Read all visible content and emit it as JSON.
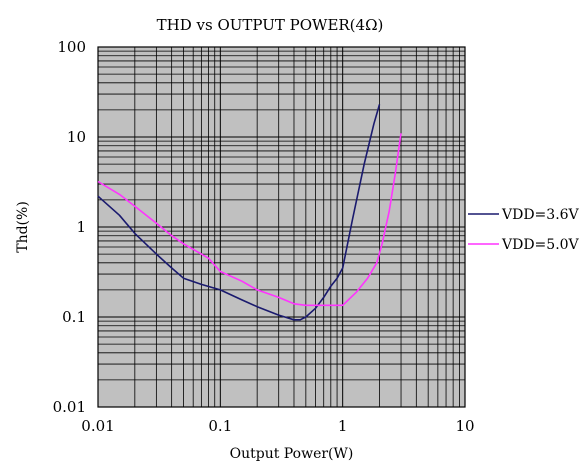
{
  "chart_data": {
    "type": "line",
    "title": "THD vs OUTPUT POWER(4Ω)",
    "xlabel": "Output Power(W)",
    "ylabel": "Thd(%)",
    "x_scale": "log",
    "y_scale": "log",
    "xlim": [
      0.01,
      10
    ],
    "ylim": [
      0.01,
      100
    ],
    "x_ticks": [
      "0.01",
      "0.1",
      "1",
      "10"
    ],
    "y_ticks": [
      "100",
      "10",
      "1",
      "0.1",
      "0.01"
    ],
    "grid": true,
    "plot_background": "#c0c0c0",
    "legend_position": "right",
    "series": [
      {
        "name": "VDD=3.6V",
        "color": "#1a1a6e",
        "points": [
          [
            0.01,
            2.2
          ],
          [
            0.015,
            1.35
          ],
          [
            0.02,
            0.85
          ],
          [
            0.03,
            0.5
          ],
          [
            0.04,
            0.35
          ],
          [
            0.05,
            0.27
          ],
          [
            0.07,
            0.23
          ],
          [
            0.1,
            0.2
          ],
          [
            0.15,
            0.155
          ],
          [
            0.2,
            0.13
          ],
          [
            0.3,
            0.105
          ],
          [
            0.4,
            0.093
          ],
          [
            0.45,
            0.093
          ],
          [
            0.5,
            0.1
          ],
          [
            0.6,
            0.125
          ],
          [
            0.7,
            0.165
          ],
          [
            0.8,
            0.22
          ],
          [
            0.9,
            0.27
          ],
          [
            1.0,
            0.35
          ],
          [
            1.2,
            1.2
          ],
          [
            1.5,
            5.0
          ],
          [
            1.8,
            14.0
          ],
          [
            2.0,
            23.0
          ]
        ]
      },
      {
        "name": "VDD=5.0V",
        "color": "#ff33ff",
        "points": [
          [
            0.01,
            3.2
          ],
          [
            0.015,
            2.3
          ],
          [
            0.02,
            1.7
          ],
          [
            0.03,
            1.1
          ],
          [
            0.04,
            0.8
          ],
          [
            0.05,
            0.65
          ],
          [
            0.07,
            0.5
          ],
          [
            0.08,
            0.45
          ],
          [
            0.1,
            0.32
          ],
          [
            0.15,
            0.25
          ],
          [
            0.2,
            0.2
          ],
          [
            0.3,
            0.165
          ],
          [
            0.4,
            0.14
          ],
          [
            0.5,
            0.135
          ],
          [
            0.7,
            0.135
          ],
          [
            1.0,
            0.135
          ],
          [
            1.3,
            0.19
          ],
          [
            1.6,
            0.27
          ],
          [
            1.9,
            0.4
          ],
          [
            2.1,
            0.65
          ],
          [
            2.4,
            1.5
          ],
          [
            2.7,
            4.0
          ],
          [
            3.0,
            11.0
          ]
        ]
      }
    ]
  }
}
